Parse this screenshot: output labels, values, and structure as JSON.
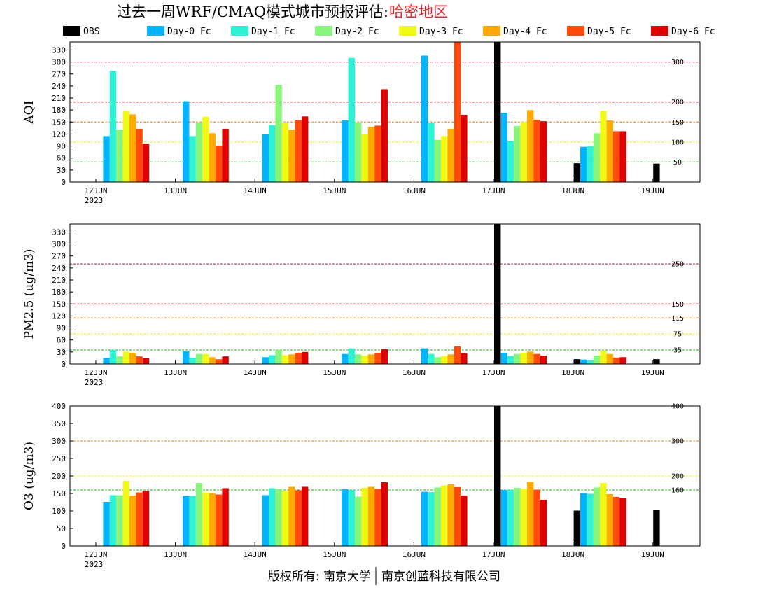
{
  "title": {
    "main": "过去一周WRF/CMAQ模式城市预报评估:",
    "region": "哈密地区"
  },
  "footer": {
    "left": "版权所有: 南京大学",
    "right": "南京创蓝科技有限公司"
  },
  "legend": [
    {
      "name": "OBS",
      "color": "#000000"
    },
    {
      "name": "Day-0 Fc",
      "color": "#00b4ff"
    },
    {
      "name": "Day-1 Fc",
      "color": "#2ef2d6"
    },
    {
      "name": "Day-2 Fc",
      "color": "#88f57a"
    },
    {
      "name": "Day-3 Fc",
      "color": "#f0fa14"
    },
    {
      "name": "Day-4 Fc",
      "color": "#ffaa00"
    },
    {
      "name": "Day-5 Fc",
      "color": "#ff4a0a"
    },
    {
      "name": "Day-6 Fc",
      "color": "#e00000"
    }
  ],
  "chart_data": [
    {
      "type": "bar",
      "ylabel": "AQI",
      "ylim": [
        0,
        350
      ],
      "yticks": [
        0,
        30,
        60,
        90,
        120,
        150,
        180,
        210,
        240,
        270,
        300,
        330
      ],
      "categories": [
        "12JUN",
        "13JUN",
        "14JUN",
        "15JUN",
        "16JUN",
        "17JUN",
        "18JUN",
        "19JUN"
      ],
      "year_label": "2023",
      "reference_lines": [
        {
          "value": 300,
          "label": "300",
          "color": "#a0184e"
        },
        {
          "value": 200,
          "label": "200",
          "color": "#e0182a"
        },
        {
          "value": 150,
          "label": "150",
          "color": "#ff7800"
        },
        {
          "value": 100,
          "label": "100",
          "color": "#f0f000"
        },
        {
          "value": 50,
          "label": "50",
          "color": "#00c000"
        }
      ],
      "series": [
        {
          "name": "OBS",
          "values": [
            null,
            null,
            null,
            null,
            null,
            350,
            47,
            46
          ]
        },
        {
          "name": "Day-0 Fc",
          "values": [
            115,
            202,
            119,
            154,
            316,
            173,
            88,
            null
          ]
        },
        {
          "name": "Day-1 Fc",
          "values": [
            278,
            115,
            142,
            310,
            147,
            103,
            90,
            null
          ]
        },
        {
          "name": "Day-2 Fc",
          "values": [
            131,
            149,
            243,
            149,
            105,
            140,
            122,
            null
          ]
        },
        {
          "name": "Day-3 Fc",
          "values": [
            178,
            163,
            147,
            119,
            115,
            150,
            178,
            null
          ]
        },
        {
          "name": "Day-4 Fc",
          "values": [
            169,
            122,
            131,
            138,
            133,
            180,
            154,
            null
          ]
        },
        {
          "name": "Day-5 Fc",
          "values": [
            133,
            91,
            155,
            141,
            350,
            156,
            127,
            null
          ]
        },
        {
          "name": "Day-6 Fc",
          "values": [
            96,
            133,
            164,
            232,
            168,
            152,
            127,
            null
          ]
        }
      ]
    },
    {
      "type": "bar",
      "ylabel": "PM2.5 (ug/m3)",
      "ylim": [
        0,
        350
      ],
      "yticks": [
        0,
        30,
        60,
        90,
        120,
        150,
        180,
        210,
        240,
        270,
        300,
        330
      ],
      "categories": [
        "12JUN",
        "13JUN",
        "14JUN",
        "15JUN",
        "16JUN",
        "17JUN",
        "18JUN",
        "19JUN"
      ],
      "year_label": "2023",
      "reference_lines": [
        {
          "value": 250,
          "label": "250",
          "color": "#a0184e"
        },
        {
          "value": 150,
          "label": "150",
          "color": "#e0182a"
        },
        {
          "value": 115,
          "label": "115",
          "color": "#ff7800"
        },
        {
          "value": 75,
          "label": "75",
          "color": "#f0f000"
        },
        {
          "value": 35,
          "label": "35",
          "color": "#00c000"
        }
      ],
      "series": [
        {
          "name": "OBS",
          "values": [
            null,
            null,
            null,
            null,
            null,
            350,
            12,
            12
          ]
        },
        {
          "name": "Day-0 Fc",
          "values": [
            15,
            32,
            17,
            25,
            39,
            28,
            11,
            null
          ]
        },
        {
          "name": "Day-1 Fc",
          "values": [
            35,
            15,
            22,
            39,
            25,
            20,
            9,
            null
          ]
        },
        {
          "name": "Day-2 Fc",
          "values": [
            19,
            25,
            35,
            24,
            17,
            25,
            21,
            null
          ]
        },
        {
          "name": "Day-3 Fc",
          "values": [
            31,
            25,
            22,
            21,
            20,
            28,
            33,
            null
          ]
        },
        {
          "name": "Day-4 Fc",
          "values": [
            28,
            17,
            24,
            24,
            24,
            31,
            25,
            null
          ]
        },
        {
          "name": "Day-5 Fc",
          "values": [
            19,
            12,
            28,
            28,
            44,
            25,
            16,
            null
          ]
        },
        {
          "name": "Day-6 Fc",
          "values": [
            14,
            19,
            30,
            37,
            27,
            21,
            17,
            null
          ]
        }
      ]
    },
    {
      "type": "bar",
      "ylabel": "O3 (ug/m3)",
      "ylim": [
        0,
        400
      ],
      "yticks": [
        0,
        50,
        100,
        150,
        200,
        250,
        300,
        350,
        400
      ],
      "categories": [
        "12JUN",
        "13JUN",
        "14JUN",
        "15JUN",
        "16JUN",
        "17JUN",
        "18JUN",
        "19JUN"
      ],
      "year_label": "2023",
      "reference_lines": [
        {
          "value": 400,
          "label": "400",
          "color": "#e0182a"
        },
        {
          "value": 300,
          "label": "300",
          "color": "#ff7800"
        },
        {
          "value": 200,
          "label": "200",
          "color": "#f0f000"
        },
        {
          "value": 160,
          "label": "160",
          "color": "#00c000"
        }
      ],
      "series": [
        {
          "name": "OBS",
          "values": [
            null,
            null,
            null,
            null,
            null,
            400,
            101,
            104
          ]
        },
        {
          "name": "Day-0 Fc",
          "values": [
            126,
            143,
            145,
            162,
            155,
            160,
            151,
            null
          ]
        },
        {
          "name": "Day-1 Fc",
          "values": [
            145,
            143,
            165,
            160,
            154,
            160,
            149,
            null
          ]
        },
        {
          "name": "Day-2 Fc",
          "values": [
            145,
            180,
            163,
            141,
            167,
            166,
            167,
            null
          ]
        },
        {
          "name": "Day-3 Fc",
          "values": [
            186,
            153,
            157,
            166,
            173,
            163,
            180,
            null
          ]
        },
        {
          "name": "Day-4 Fc",
          "values": [
            144,
            151,
            169,
            169,
            176,
            183,
            148,
            null
          ]
        },
        {
          "name": "Day-5 Fc",
          "values": [
            153,
            147,
            159,
            163,
            168,
            161,
            140,
            null
          ]
        },
        {
          "name": "Day-6 Fc",
          "values": [
            157,
            165,
            169,
            182,
            144,
            132,
            136,
            null
          ]
        }
      ]
    }
  ]
}
